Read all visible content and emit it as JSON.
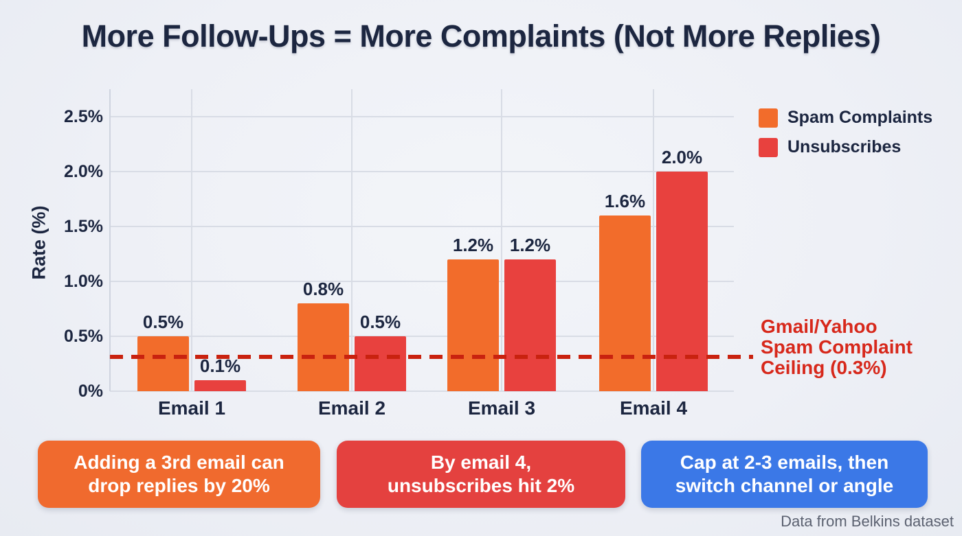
{
  "title": "More Follow-Ups = More Complaints (Not More Replies)",
  "colors": {
    "background": "#eef0f6",
    "title_text": "#1c2640",
    "spam_orange": "#f26c2b",
    "unsub_red": "#e8413e",
    "ceiling_red": "#c9220f",
    "annotation_red": "#d7281b",
    "callout_orange": "#f06a2e",
    "callout_red": "#e4413f",
    "callout_blue": "#3b78e7",
    "grid_gray": "#d8dce5",
    "footer_gray": "#5b6170"
  },
  "chart_data": {
    "type": "bar",
    "categories": [
      "Email 1",
      "Email 2",
      "Email 3",
      "Email 4"
    ],
    "series": [
      {
        "name": "Spam Complaints",
        "color": "#f26c2b",
        "values": [
          0.5,
          0.8,
          1.2,
          1.6
        ],
        "labels": [
          "0.5%",
          "0.8%",
          "1.2%",
          "1.6%"
        ]
      },
      {
        "name": "Unsubscribes",
        "color": "#e8413e",
        "values": [
          0.1,
          0.5,
          1.2,
          2.0
        ],
        "labels": [
          "0.1%",
          "0.5%",
          "1.2%",
          "2.0%"
        ]
      }
    ],
    "title": "More Follow-Ups = More Complaints (Not More Replies)",
    "xlabel": "",
    "ylabel": "Rate (%)",
    "ylim": [
      0,
      2.75
    ],
    "yticks": [
      {
        "value": 0.0,
        "label": "0%"
      },
      {
        "value": 0.5,
        "label": "0.5%"
      },
      {
        "value": 1.0,
        "label": "1.0%"
      },
      {
        "value": 1.5,
        "label": "1.5%"
      },
      {
        "value": 2.0,
        "label": "2.0%"
      },
      {
        "value": 2.5,
        "label": "2.5%"
      }
    ],
    "grid": true,
    "legend_position": "top-right",
    "reference_line": {
      "value": 0.3,
      "style": "dashed",
      "color": "#c9220f",
      "label": "Gmail/Yahoo Spam Complaint Ceiling (0.3%)"
    }
  },
  "legend": {
    "items": [
      {
        "label": "Spam Complaints",
        "color": "#f26c2b"
      },
      {
        "label": "Unsubscribes",
        "color": "#e8413e"
      }
    ]
  },
  "annotation": {
    "line1": "Gmail/Yahoo",
    "line2": "Spam Complaint",
    "line3": "Ceiling (0.3%)"
  },
  "callouts": [
    {
      "line1": "Adding a 3rd email can",
      "line2": "drop replies by 20%",
      "color": "#f06a2e"
    },
    {
      "line1": "By email 4,",
      "line2": "unsubscribes hit 2%",
      "color": "#e4413f"
    },
    {
      "line1": "Cap at 2-3 emails, then",
      "line2": "switch channel or angle",
      "color": "#3b78e7"
    }
  ],
  "footer": {
    "source": "Data from Belkins dataset"
  }
}
